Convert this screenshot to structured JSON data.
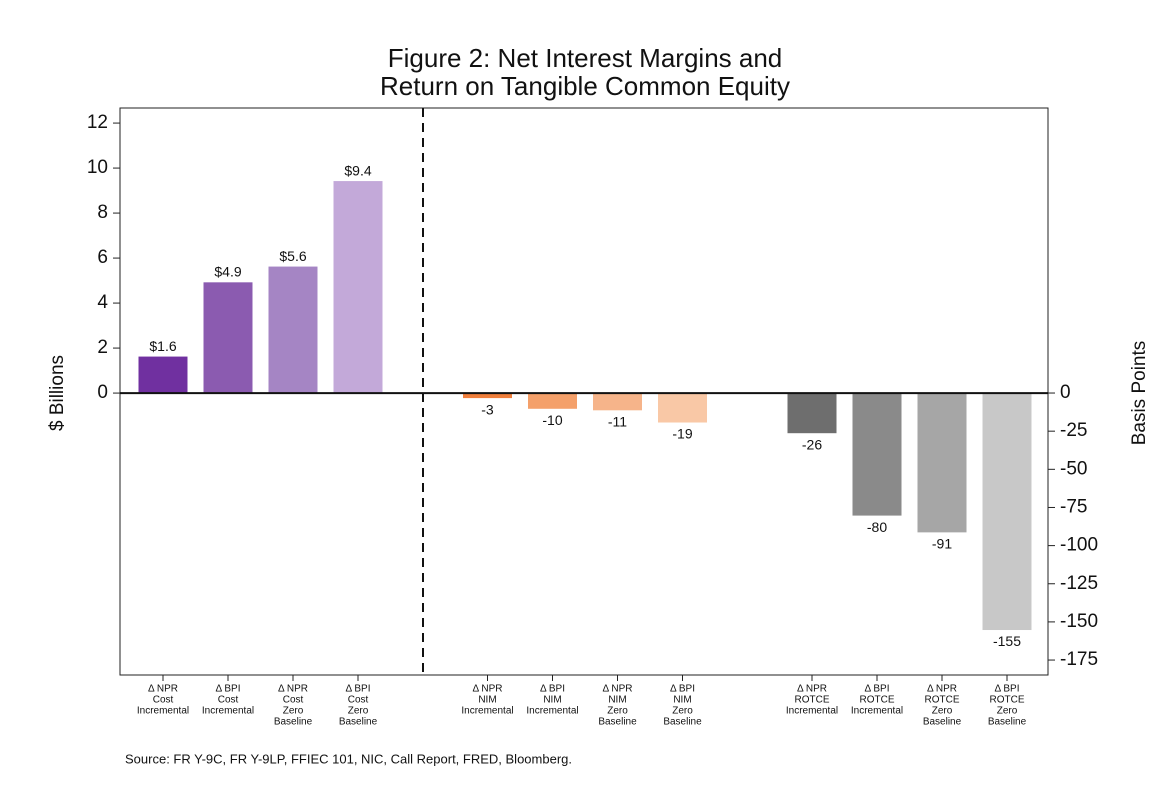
{
  "chart_data": {
    "type": "bar",
    "title": [
      "Figure 2: Net Interest Margins and",
      "Return on Tangible Common Equity"
    ],
    "y_label": "$ Billions",
    "y2_label": "Basis Points",
    "source": "Source: FR Y-9C, FR Y-9LP, FFIEC 101, NIC, Call Report, FRED, Bloomberg.",
    "categories": [
      [
        "Δ NPR",
        "Cost",
        "Incremental"
      ],
      [
        "Δ BPI",
        "Cost",
        "Incremental"
      ],
      [
        "Δ NPR",
        "Cost",
        "Zero",
        "Baseline"
      ],
      [
        "Δ BPI",
        "Cost",
        "Zero",
        "Baseline"
      ],
      [
        "Δ NPR",
        "NIM",
        "Incremental"
      ],
      [
        "Δ BPI",
        "NIM",
        "Incremental"
      ],
      [
        "Δ NPR",
        "NIM",
        "Zero",
        "Baseline"
      ],
      [
        "Δ BPI",
        "NIM",
        "Zero",
        "Baseline"
      ],
      [
        "Δ NPR",
        "ROTCE",
        "Incremental"
      ],
      [
        "Δ BPI",
        "ROTCE",
        "Incremental"
      ],
      [
        "Δ NPR",
        "ROTCE",
        "Zero",
        "Baseline"
      ],
      [
        "Δ BPI",
        "ROTCE",
        "Zero",
        "Baseline"
      ]
    ],
    "series": [
      {
        "axis": "y",
        "colors": [
          "#7030a0",
          "#8b5bb0",
          "#a585c4",
          "#c3a9d9",
          null,
          null,
          null,
          null,
          null,
          null,
          null,
          null
        ],
        "values": [
          1.6,
          4.9,
          5.6,
          9.4,
          null,
          null,
          null,
          null,
          null,
          null,
          null,
          null
        ],
        "value_labels": [
          "$1.6",
          "$4.9",
          "$5.6",
          "$9.4",
          null,
          null,
          null,
          null,
          null,
          null,
          null,
          null
        ]
      },
      {
        "axis": "y2",
        "colors": [
          null,
          null,
          null,
          null,
          "#f07f3c",
          "#f4a06a",
          "#f6b48a",
          "#f9c8a6",
          null,
          null,
          null,
          null
        ],
        "values": [
          null,
          null,
          null,
          null,
          -3,
          -10,
          -11,
          -19,
          null,
          null,
          null,
          null
        ]
      },
      {
        "axis": "y2",
        "colors": [
          null,
          null,
          null,
          null,
          null,
          null,
          null,
          null,
          "#6e6e6e",
          "#8a8a8a",
          "#a6a6a6",
          "#c8c8c8"
        ],
        "values": [
          null,
          null,
          null,
          null,
          null,
          null,
          null,
          null,
          -26,
          -80,
          -91,
          -155
        ]
      }
    ],
    "ylim": [
      -12.53,
      12.67
    ],
    "yticks": [
      0,
      2,
      4,
      6,
      8,
      10,
      12
    ],
    "y2lim": [
      -184.8,
      186.8
    ],
    "y2ticks": [
      0,
      -25,
      -50,
      -75,
      -100,
      -125,
      -150,
      -175
    ]
  }
}
